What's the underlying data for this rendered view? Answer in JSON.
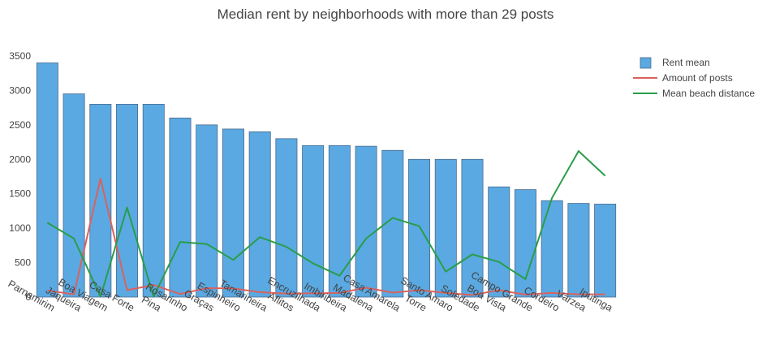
{
  "chart_data": {
    "type": "bar",
    "title": "Median rent by neighborhoods with more than 29 posts",
    "xlabel": "",
    "ylabel": "",
    "ylim": [
      0,
      3500
    ],
    "yticks": [
      0,
      500,
      1000,
      1500,
      2000,
      2500,
      3000,
      3500
    ],
    "grid": false,
    "legend_position": "top-right",
    "categories": [
      "Parnamirim",
      "Jaqueira",
      "Boa Viagem",
      "Casa Forte",
      "Pina",
      "Rosarinho",
      "Graças",
      "Espinheiro",
      "Tamarineira",
      "Aflitos",
      "Encruzilhada",
      "Imbiribeira",
      "Madalena",
      "Casa Amarela",
      "Torre",
      "Santo Amaro",
      "Soledade",
      "Boa Vista",
      "Campo Grande",
      "Cordeiro",
      "Várzea",
      "Iputinga"
    ],
    "series": [
      {
        "name": "Rent mean",
        "type": "bar",
        "color": "#5aa9e2",
        "values": [
          3400,
          2950,
          2800,
          2800,
          2800,
          2600,
          2500,
          2440,
          2400,
          2300,
          2200,
          2200,
          2190,
          2130,
          2000,
          2000,
          2000,
          1600,
          1560,
          1400,
          1360,
          1350
        ]
      },
      {
        "name": "Amount of posts",
        "type": "line",
        "color": "#d9625e",
        "values": [
          95,
          40,
          1720,
          100,
          175,
          45,
          130,
          125,
          70,
          50,
          55,
          60,
          135,
          65,
          100,
          60,
          30,
          100,
          35,
          60,
          40,
          40
        ]
      },
      {
        "name": "Mean beach distance",
        "type": "line",
        "color": "#2a9d4a",
        "values": [
          1080,
          850,
          5,
          1300,
          5,
          800,
          770,
          540,
          870,
          730,
          490,
          310,
          850,
          1150,
          1030,
          370,
          620,
          510,
          260,
          1440,
          2120,
          1760
        ]
      }
    ]
  }
}
